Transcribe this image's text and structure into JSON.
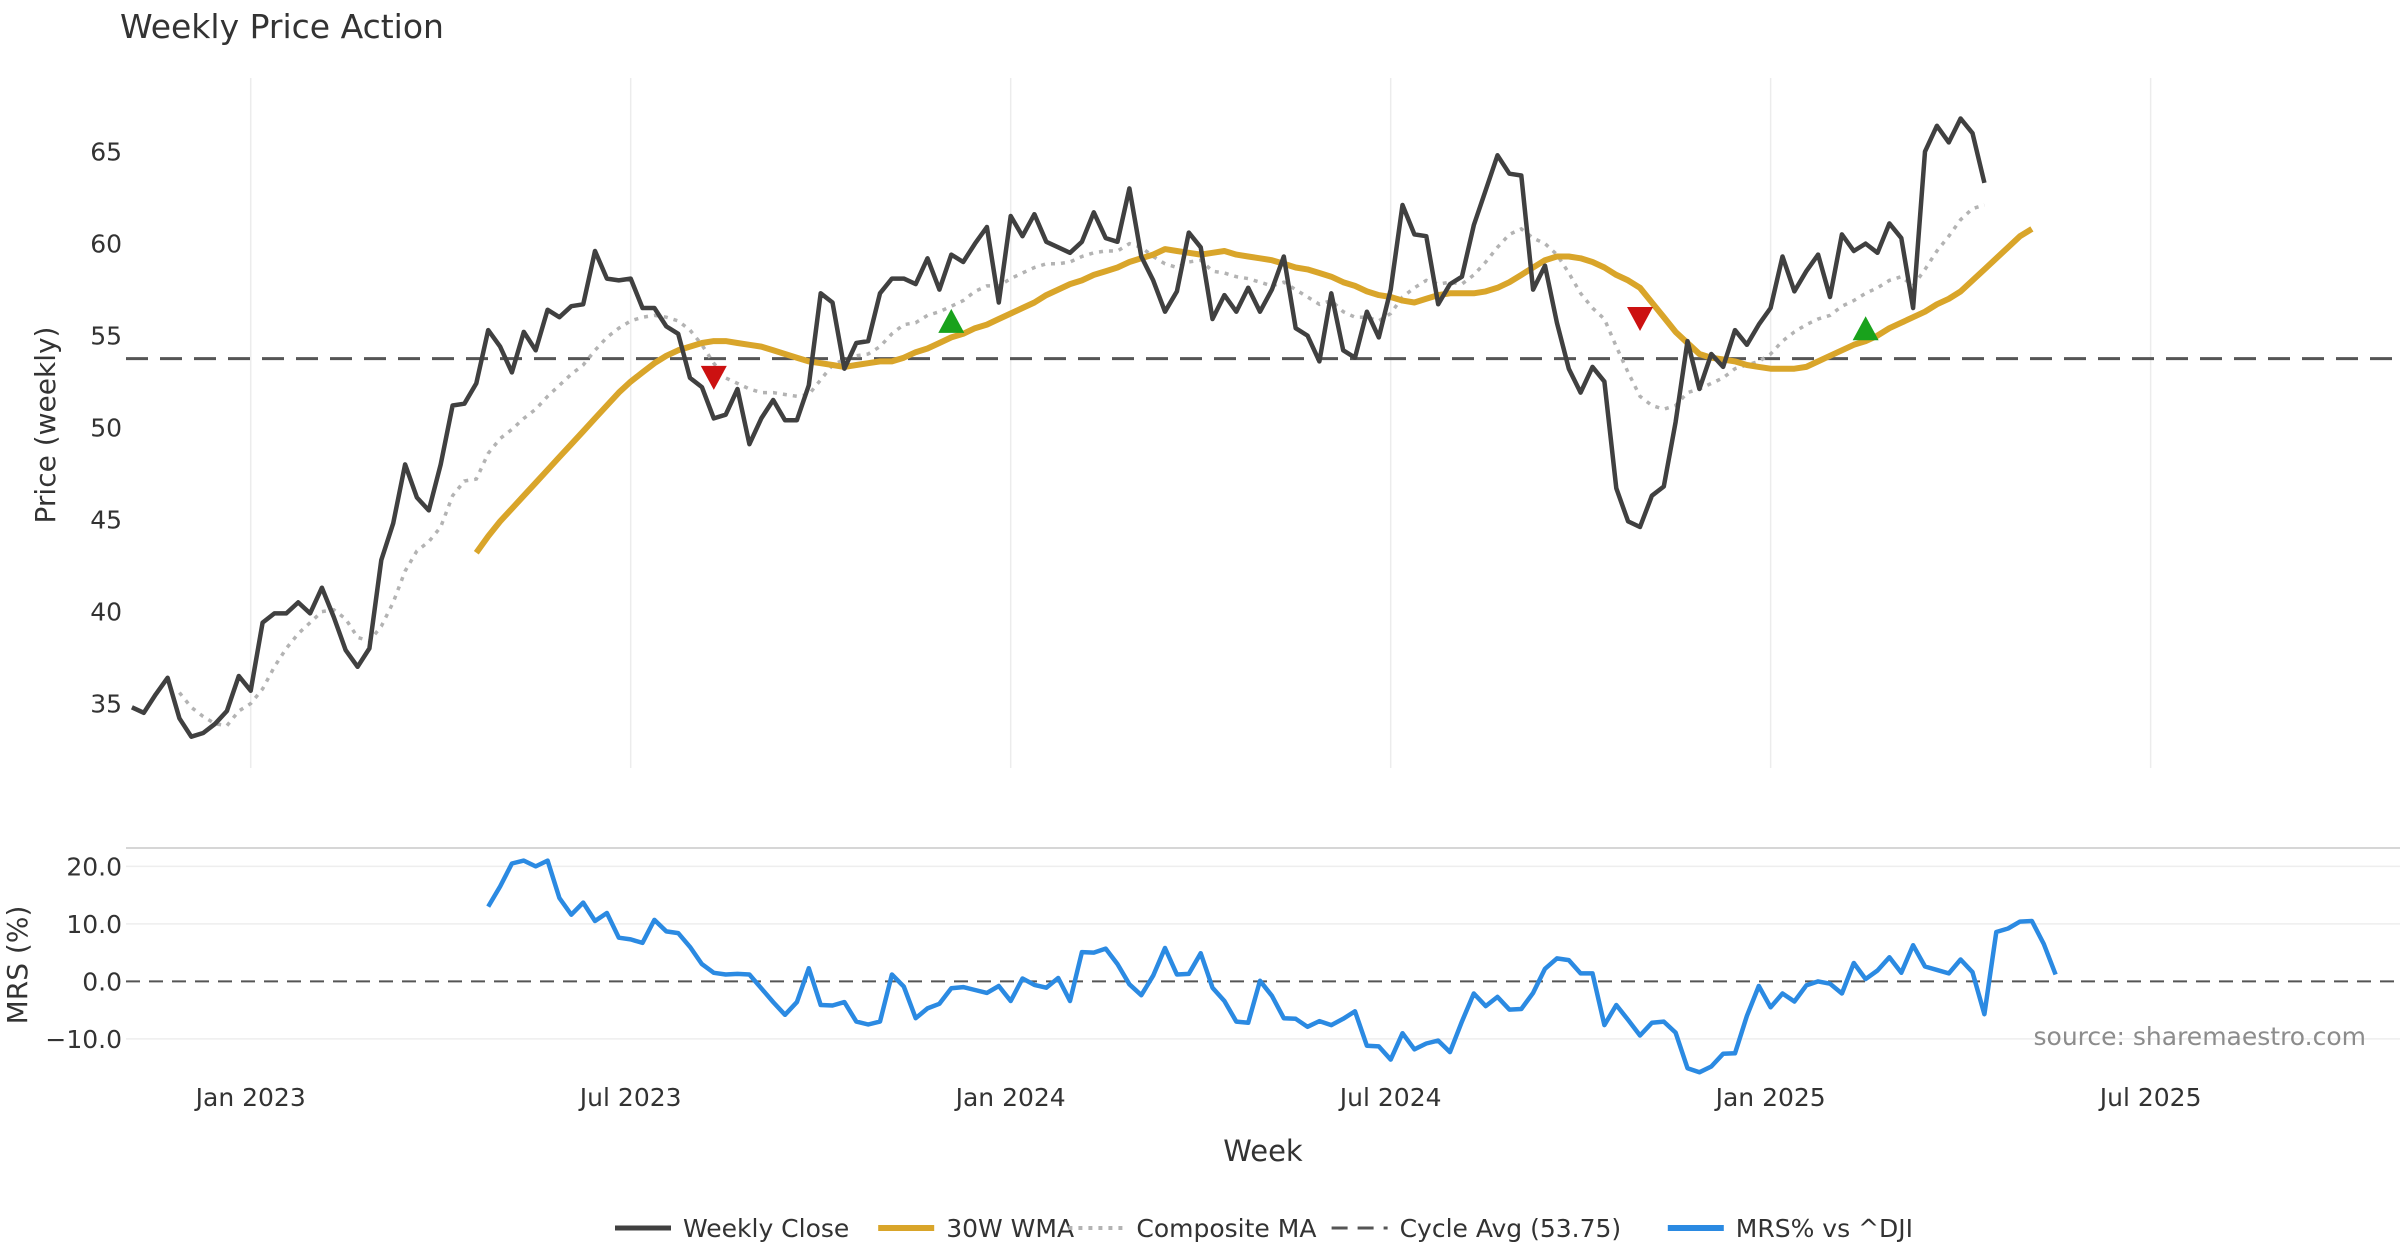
{
  "chart_data": [
    {
      "type": "line",
      "title": "Weekly Price Action",
      "ylabel": "Price (weekly)",
      "ylim": [
        31.5,
        69
      ],
      "yticks": [
        35,
        40,
        45,
        50,
        55,
        60,
        65
      ],
      "cycle_avg": 53.75,
      "series": [
        {
          "name": "Weekly Close",
          "color": "#404040",
          "values": [
            34.8,
            34.5,
            35.5,
            36.4,
            34.2,
            33.2,
            33.4,
            33.9,
            34.6,
            36.5,
            35.7,
            39.4,
            39.9,
            39.9,
            40.5,
            39.9,
            41.3,
            39.7,
            37.9,
            37.0,
            38.0,
            42.8,
            44.8,
            48.0,
            46.2,
            45.5,
            48.0,
            51.2,
            51.3,
            52.4,
            55.3,
            54.4,
            53.0,
            55.2,
            54.2,
            56.4,
            56.0,
            56.6,
            56.7,
            59.6,
            58.1,
            58.0,
            58.1,
            56.5,
            56.5,
            55.5,
            55.1,
            52.7,
            52.2,
            50.5,
            50.7,
            52.1,
            49.1,
            50.5,
            51.5,
            50.4,
            50.4,
            52.3,
            57.3,
            56.8,
            53.2,
            54.6,
            54.7,
            57.3,
            58.1,
            58.1,
            57.8,
            59.2,
            57.5,
            59.4,
            59.0,
            60.0,
            60.9,
            56.8,
            61.5,
            60.4,
            61.6,
            60.1,
            59.8,
            59.5,
            60.1,
            61.7,
            60.3,
            60.1,
            63.0,
            59.3,
            58.0,
            56.3,
            57.4,
            60.6,
            59.8,
            55.9,
            57.2,
            56.3,
            57.6,
            56.3,
            57.5,
            59.3,
            55.4,
            55.0,
            53.6,
            57.3,
            54.2,
            53.8,
            56.3,
            54.9,
            57.5,
            62.1,
            60.5,
            60.4,
            56.7,
            57.8,
            58.2,
            61.0,
            62.9,
            64.8,
            63.8,
            63.7,
            57.5,
            58.8,
            55.7,
            53.2,
            51.9,
            53.3,
            52.5,
            46.7,
            44.9,
            44.6,
            46.3,
            46.8,
            50.3,
            54.7,
            52.1,
            54.0,
            53.3,
            55.3,
            54.5,
            55.6,
            56.5,
            59.3,
            57.4,
            58.5,
            59.4,
            57.1,
            60.5,
            59.6,
            60.0,
            59.5,
            61.1,
            60.3,
            56.5,
            65.0,
            66.4,
            65.5,
            66.8,
            66.0,
            63.3
          ]
        },
        {
          "name": "30W WMA",
          "color": "#d9a52a",
          "values": [
            null,
            null,
            null,
            null,
            null,
            null,
            null,
            null,
            null,
            null,
            null,
            null,
            null,
            null,
            null,
            null,
            null,
            null,
            null,
            null,
            null,
            null,
            null,
            null,
            null,
            null,
            null,
            null,
            null,
            43.2,
            44.1,
            44.9,
            45.6,
            46.3,
            47.0,
            47.7,
            48.4,
            49.1,
            49.8,
            50.5,
            51.2,
            51.9,
            52.5,
            53.0,
            53.5,
            53.9,
            54.2,
            54.4,
            54.6,
            54.7,
            54.7,
            54.6,
            54.5,
            54.4,
            54.2,
            54.0,
            53.8,
            53.6,
            53.5,
            53.4,
            53.3,
            53.4,
            53.5,
            53.6,
            53.6,
            53.8,
            54.1,
            54.3,
            54.6,
            54.9,
            55.1,
            55.4,
            55.6,
            55.9,
            56.2,
            56.5,
            56.8,
            57.2,
            57.5,
            57.8,
            58.0,
            58.3,
            58.5,
            58.7,
            59.0,
            59.2,
            59.4,
            59.7,
            59.6,
            59.5,
            59.4,
            59.5,
            59.6,
            59.4,
            59.3,
            59.2,
            59.1,
            58.9,
            58.7,
            58.6,
            58.4,
            58.2,
            57.9,
            57.7,
            57.4,
            57.2,
            57.1,
            56.9,
            56.8,
            57.0,
            57.2,
            57.3,
            57.3,
            57.3,
            57.4,
            57.6,
            57.9,
            58.3,
            58.7,
            59.1,
            59.3,
            59.3,
            59.2,
            59.0,
            58.7,
            58.3,
            58.0,
            57.6,
            56.8,
            56.0,
            55.2,
            54.6,
            54.0,
            53.8,
            53.7,
            53.6,
            53.4,
            53.3,
            53.2,
            53.2,
            53.2,
            53.3,
            53.6,
            53.9,
            54.2,
            54.5,
            54.7,
            55.0,
            55.4,
            55.7,
            56.0,
            56.3,
            56.7,
            57.0,
            57.4,
            58.0,
            58.6,
            59.2,
            59.8,
            60.4,
            60.8
          ]
        },
        {
          "name": "Composite MA",
          "color": "#b3b3b3",
          "values": [
            null,
            null,
            null,
            null,
            35.6,
            34.8,
            34.3,
            33.9,
            33.8,
            34.6,
            35.0,
            35.8,
            37.0,
            38.0,
            38.8,
            39.4,
            40.0,
            40.1,
            39.6,
            38.6,
            38.4,
            39.2,
            40.5,
            42.2,
            43.3,
            43.8,
            44.6,
            46.3,
            47.1,
            47.2,
            48.6,
            49.4,
            49.9,
            50.5,
            51.0,
            51.7,
            52.3,
            52.9,
            53.4,
            54.2,
            54.9,
            55.4,
            55.8,
            56.0,
            56.1,
            56.0,
            55.8,
            55.3,
            54.5,
            53.5,
            52.7,
            52.4,
            52.1,
            51.9,
            51.9,
            51.8,
            51.7,
            51.8,
            52.6,
            53.4,
            53.7,
            53.9,
            54.0,
            54.4,
            55.1,
            55.6,
            55.7,
            56.1,
            56.3,
            56.6,
            56.9,
            57.4,
            57.7,
            57.7,
            58.1,
            58.4,
            58.7,
            58.9,
            58.9,
            59.0,
            59.3,
            59.5,
            59.6,
            59.6,
            60.0,
            59.8,
            59.3,
            58.9,
            58.7,
            59.0,
            59.1,
            58.5,
            58.4,
            58.2,
            58.1,
            57.9,
            57.7,
            57.9,
            57.5,
            57.1,
            56.7,
            56.9,
            56.3,
            56.0,
            56.0,
            55.8,
            56.2,
            57.1,
            57.6,
            58.0,
            57.8,
            57.9,
            57.8,
            58.3,
            59.0,
            59.8,
            60.5,
            60.8,
            60.3,
            60.0,
            59.4,
            58.4,
            57.3,
            56.5,
            55.9,
            54.4,
            53.0,
            51.7,
            51.2,
            51.0,
            51.2,
            51.9,
            52.1,
            52.4,
            52.7,
            53.2,
            53.4,
            53.6,
            54.0,
            54.7,
            55.2,
            55.6,
            55.9,
            56.1,
            56.6,
            56.9,
            57.3,
            57.6,
            58.0,
            58.2,
            57.7,
            58.6,
            59.6,
            60.4,
            61.3,
            61.9,
            62.1
          ]
        },
        {
          "name": "Cycle Avg (53.75)",
          "color": "#555555",
          "values": []
        }
      ],
      "signals": [
        {
          "type": "sell",
          "index": 49,
          "value": 52.7
        },
        {
          "type": "buy",
          "index": 69,
          "value": 55.8
        },
        {
          "type": "sell",
          "index": 127,
          "value": 55.9
        },
        {
          "type": "buy",
          "index": 146,
          "value": 55.4
        }
      ]
    },
    {
      "type": "line",
      "ylabel": "MRS (%)",
      "xlabel": "Week",
      "ylim": [
        -16.8,
        23.2
      ],
      "yticks": [
        20.0,
        10.0,
        0.0,
        -10.0
      ],
      "ytick_labels": [
        "20.0",
        "10.0",
        "0.0",
        "−10.0"
      ],
      "x_ticks": [
        {
          "label": "Jan 2023",
          "index": 10
        },
        {
          "label": "Jul 2023",
          "index": 42
        },
        {
          "label": "Jan 2024",
          "index": 74
        },
        {
          "label": "Jul 2024",
          "index": 106
        },
        {
          "label": "Jan 2025",
          "index": 138
        },
        {
          "label": "Jul 2025",
          "index": 170
        }
      ],
      "x_index_range": [
        -0.5,
        191
      ],
      "series": [
        {
          "name": "MRS% vs ^DJI",
          "color": "#2b8ae2",
          "values": [
            null,
            null,
            null,
            null,
            null,
            null,
            null,
            null,
            null,
            null,
            null,
            null,
            null,
            null,
            null,
            null,
            null,
            null,
            null,
            null,
            null,
            null,
            null,
            null,
            null,
            null,
            null,
            null,
            null,
            null,
            13.0,
            16.5,
            20.5,
            21.0,
            20.0,
            21.0,
            14.5,
            11.6,
            13.7,
            10.5,
            11.9,
            7.6,
            7.3,
            6.7,
            10.7,
            8.7,
            8.4,
            6.0,
            3.0,
            1.5,
            1.2,
            1.3,
            1.2,
            -1.2,
            -3.6,
            -5.8,
            -3.6,
            2.3,
            -4.1,
            -4.2,
            -3.6,
            -7.0,
            -7.5,
            -7.0,
            1.2,
            -0.9,
            -6.4,
            -4.7,
            -3.9,
            -1.2,
            -1.0,
            -1.5,
            -2.0,
            -0.8,
            -3.4,
            0.5,
            -0.6,
            -1.1,
            0.6,
            -3.4,
            5.1,
            5.0,
            5.7,
            3.0,
            -0.5,
            -2.4,
            1.0,
            5.8,
            1.2,
            1.3,
            4.9,
            -1.1,
            -3.4,
            -7.0,
            -7.2,
            0.1,
            -2.5,
            -6.4,
            -6.5,
            -7.9,
            -6.9,
            -7.6,
            -6.5,
            -5.2,
            -11.2,
            -11.3,
            -13.6,
            -9.0,
            -11.8,
            -10.8,
            -10.3,
            -12.3,
            -7.0,
            -2.1,
            -4.3,
            -2.7,
            -4.9,
            -4.8,
            -2.0,
            2.2,
            4.0,
            3.7,
            1.4,
            1.4,
            -7.6,
            -4.1,
            -6.7,
            -9.4,
            -7.2,
            -7.0,
            -8.9,
            -15.1,
            -15.8,
            -14.8,
            -12.6,
            -12.5,
            -6.0,
            -0.8,
            -4.5,
            -2.1,
            -3.5,
            -0.7,
            0.0,
            -0.4,
            -2.1,
            3.2,
            0.4,
            1.9,
            4.2,
            1.5,
            6.3,
            2.6,
            2.0,
            1.4,
            3.8,
            1.6,
            -5.7,
            8.6,
            9.2,
            10.4,
            10.5,
            6.5,
            1.2
          ]
        }
      ]
    }
  ],
  "source_note": "source: sharemaestro.com"
}
